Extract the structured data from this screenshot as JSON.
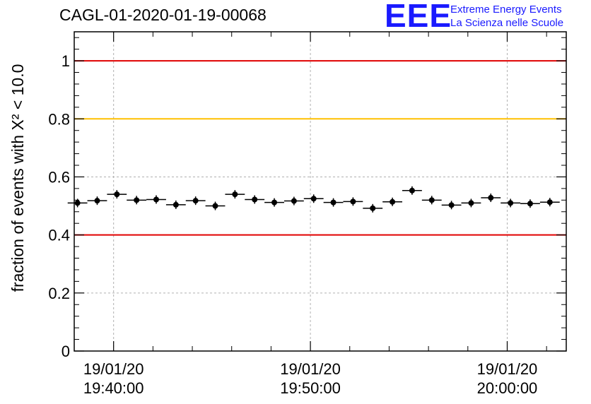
{
  "header": {
    "title": "CAGL-01-2020-01-19-00068"
  },
  "logo": {
    "mark": "EEE",
    "line1": "Extreme Energy Events",
    "line2": "La Scienza nelle Scuole",
    "color": "#1a1aff"
  },
  "chart_data": {
    "type": "scatter",
    "ylabel": "fraction of events with X² < 10.0",
    "ylim": [
      0,
      1.1
    ],
    "yticks": [
      "0",
      "0.2",
      "0.4",
      "0.6",
      "0.8",
      "1"
    ],
    "xticks": [
      {
        "date": "19/01/20",
        "time": "19:40:00"
      },
      {
        "date": "19/01/20",
        "time": "19:50:00"
      },
      {
        "date": "19/01/20",
        "time": "20:00:00"
      }
    ],
    "grid": true,
    "reference_lines": [
      {
        "y": 1.0,
        "color": "#e00000"
      },
      {
        "y": 0.8,
        "color": "#ffc000"
      },
      {
        "y": 0.4,
        "color": "#e00000"
      }
    ],
    "series": [
      {
        "x": [
          "19:38:10",
          "19:39:10",
          "19:40:10",
          "19:41:10",
          "19:42:10",
          "19:43:10",
          "19:44:10",
          "19:45:10",
          "19:46:10",
          "19:47:10",
          "19:48:10",
          "19:49:10",
          "19:50:10",
          "19:51:10",
          "19:52:10",
          "19:53:10",
          "19:54:10",
          "19:55:10",
          "19:56:10",
          "19:57:10",
          "19:58:10",
          "19:59:10",
          "20:00:10",
          "20:01:10",
          "20:02:10"
        ],
        "values": [
          0.51,
          0.518,
          0.54,
          0.52,
          0.522,
          0.504,
          0.518,
          0.5,
          0.54,
          0.522,
          0.512,
          0.517,
          0.525,
          0.512,
          0.515,
          0.492,
          0.514,
          0.553,
          0.52,
          0.503,
          0.51,
          0.528,
          0.51,
          0.508,
          0.513
        ]
      }
    ],
    "colors": {
      "marker": "#000000",
      "grid": "#b0b0b0",
      "frame": "#000000"
    }
  }
}
